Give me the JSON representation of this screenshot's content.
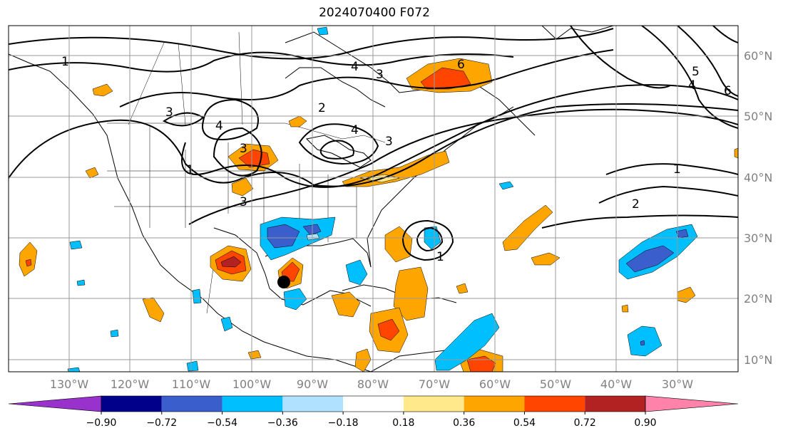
{
  "title": "2024070400 F072",
  "longitude_ticks": [
    "130°W",
    "120°W",
    "110°W",
    "100°W",
    "90°W",
    "80°W",
    "70°W",
    "60°W",
    "50°W",
    "40°W",
    "30°W"
  ],
  "latitude_ticks": [
    "60°N",
    "50°N",
    "40°N",
    "30°N",
    "20°N",
    "10°N"
  ],
  "colorbar": {
    "labels": [
      "−0.90",
      "−0.72",
      "−0.54",
      "−0.36",
      "−0.18",
      "0.18",
      "0.36",
      "0.54",
      "0.72",
      "0.90"
    ],
    "colors": [
      "#9932cc",
      "#00008b",
      "#3a5fcd",
      "#00bfff",
      "#b0e2ff",
      "#ffffff",
      "#ffe98a",
      "#ffa500",
      "#ff4500",
      "#b22222",
      "#ff82ab"
    ]
  },
  "contour_labels": [
    "1",
    "3",
    "4",
    "2",
    "3",
    "4",
    "3",
    "4",
    "3",
    "6",
    "1",
    "2",
    "3",
    "1",
    "1",
    "5",
    "4",
    "6"
  ],
  "colors": {
    "contour": "#000000",
    "coast": "#000000",
    "grid": "#9a9a9a",
    "marker": "#000000"
  }
}
